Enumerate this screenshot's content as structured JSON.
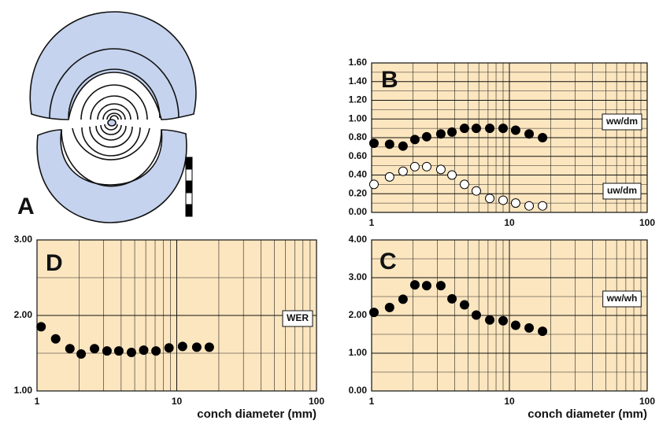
{
  "panel_a": {
    "label": "A"
  },
  "chart_data": [
    {
      "type": "scatter",
      "label": "B",
      "xscale": "log",
      "background": "#fce6bf",
      "grid": true,
      "x": [
        1.04,
        1.35,
        1.69,
        2.06,
        2.51,
        3.18,
        3.83,
        4.72,
        5.75,
        7.2,
        9.0,
        11.1,
        13.9,
        17.4
      ],
      "xlim": [
        1,
        100
      ],
      "xticks": [
        1,
        10,
        100
      ],
      "ylim": [
        0,
        1.6
      ],
      "yticks": [
        {
          "value": 0,
          "label": "0.00"
        },
        {
          "value": 0.2,
          "label": "0.20"
        },
        {
          "value": 0.4,
          "label": "0.40"
        },
        {
          "value": 0.6,
          "label": "0.60"
        },
        {
          "value": 0.8,
          "label": "0.80"
        },
        {
          "value": 1.0,
          "label": "1.00"
        },
        {
          "value": 1.2,
          "label": "1.20"
        },
        {
          "value": 1.4,
          "label": "1.40"
        },
        {
          "value": 1.6,
          "label": "1.60"
        }
      ],
      "series": [
        {
          "name": "ww/dm",
          "color": "#000000",
          "values": [
            0.74,
            0.73,
            0.71,
            0.78,
            0.81,
            0.84,
            0.86,
            0.9,
            0.9,
            0.9,
            0.9,
            0.88,
            0.84,
            0.8
          ]
        },
        {
          "name": "uw/dm",
          "color": "#ffffff",
          "values": [
            0.3,
            0.38,
            0.44,
            0.49,
            0.49,
            0.46,
            0.4,
            0.3,
            0.23,
            0.15,
            0.13,
            0.1,
            0.07,
            0.07
          ]
        }
      ]
    },
    {
      "type": "scatter",
      "label": "C",
      "xscale": "log",
      "background": "#fce6bf",
      "grid": true,
      "xlabel": "conch diameter (mm)",
      "x": [
        1.04,
        1.35,
        1.69,
        2.06,
        2.51,
        3.18,
        3.83,
        4.72,
        5.75,
        7.2,
        9.0,
        11.1,
        13.9,
        17.4
      ],
      "xlim": [
        1,
        100
      ],
      "xticks": [
        1,
        10,
        100
      ],
      "ylim": [
        0,
        4
      ],
      "yticks": [
        {
          "value": 0,
          "label": "0.00"
        },
        {
          "value": 1,
          "label": "1.00"
        },
        {
          "value": 2,
          "label": "2.00"
        },
        {
          "value": 3,
          "label": "3.00"
        },
        {
          "value": 4,
          "label": "4.00"
        }
      ],
      "series": [
        {
          "name": "ww/wh",
          "color": "#000000",
          "values": [
            2.08,
            2.21,
            2.43,
            2.81,
            2.79,
            2.79,
            2.44,
            2.28,
            2.01,
            1.88,
            1.86,
            1.74,
            1.67,
            1.58
          ]
        }
      ]
    },
    {
      "type": "scatter",
      "label": "D",
      "xscale": "log",
      "background": "#fce6bf",
      "grid": true,
      "xlabel": "conch diameter (mm)",
      "x": [
        1.07,
        1.36,
        1.72,
        2.07,
        2.58,
        3.17,
        3.85,
        4.74,
        5.8,
        7.1,
        8.8,
        11.0,
        13.9,
        17.1
      ],
      "xlim": [
        1,
        100
      ],
      "xticks": [
        1,
        10,
        100
      ],
      "ylim": [
        1,
        3
      ],
      "yticks": [
        {
          "value": 1,
          "label": "1.00"
        },
        {
          "value": 2,
          "label": "2.00"
        },
        {
          "value": 3,
          "label": "3.00"
        }
      ],
      "series": [
        {
          "name": "WER",
          "color": "#000000",
          "values": [
            1.85,
            1.69,
            1.56,
            1.49,
            1.56,
            1.53,
            1.53,
            1.51,
            1.54,
            1.53,
            1.57,
            1.59,
            1.58,
            1.58
          ]
        }
      ]
    }
  ]
}
